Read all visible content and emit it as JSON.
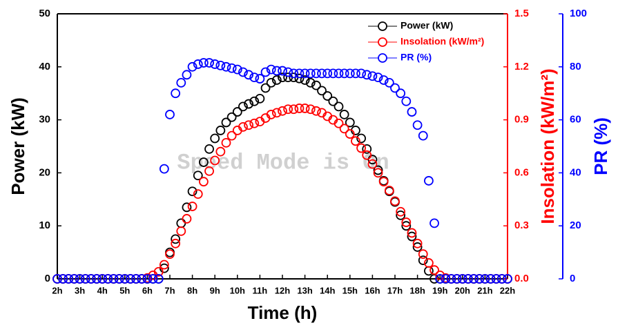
{
  "chart_data": {
    "type": "scatter",
    "xlabel": "Time (h)",
    "ylabel": "Power (kW)",
    "y2label": "Insolation (kW/m²)",
    "y3label": "PR (%)",
    "watermark": "Speed Mode is On",
    "xlim": [
      2,
      22
    ],
    "xticks": [
      {
        "value": 2,
        "label": "2h"
      },
      {
        "value": 3,
        "label": "3h"
      },
      {
        "value": 4,
        "label": "4h"
      },
      {
        "value": 5,
        "label": "5h"
      },
      {
        "value": 6,
        "label": "6h"
      },
      {
        "value": 7,
        "label": "7h"
      },
      {
        "value": 8,
        "label": "8h"
      },
      {
        "value": 9,
        "label": "9h"
      },
      {
        "value": 10,
        "label": "10h"
      },
      {
        "value": 11,
        "label": "11h"
      },
      {
        "value": 12,
        "label": "12h"
      },
      {
        "value": 13,
        "label": "13h"
      },
      {
        "value": 14,
        "label": "14h"
      },
      {
        "value": 15,
        "label": "15h"
      },
      {
        "value": 16,
        "label": "16h"
      },
      {
        "value": 17,
        "label": "17h"
      },
      {
        "value": 18,
        "label": "18h"
      },
      {
        "value": 19,
        "label": "19h"
      },
      {
        "value": 20,
        "label": "20h"
      },
      {
        "value": 21,
        "label": "21h"
      },
      {
        "value": 22,
        "label": "22h"
      }
    ],
    "ylim": [
      0,
      50
    ],
    "yticks": [
      0,
      10,
      20,
      30,
      40,
      50
    ],
    "y2lim": [
      0,
      1.5
    ],
    "y2ticks": [
      {
        "value": 0,
        "label": "0.0"
      },
      0.3,
      0.6,
      0.9,
      1.2,
      1.5
    ],
    "y3lim": [
      0,
      100
    ],
    "y3ticks": [
      0,
      20,
      40,
      60,
      80,
      100
    ],
    "x": [
      2,
      2.25,
      2.5,
      2.75,
      3,
      3.25,
      3.5,
      3.75,
      4,
      4.25,
      4.5,
      4.75,
      5,
      5.25,
      5.5,
      5.75,
      6,
      6.25,
      6.5,
      6.75,
      7,
      7.25,
      7.5,
      7.75,
      8,
      8.25,
      8.5,
      8.75,
      9,
      9.25,
      9.5,
      9.75,
      10,
      10.25,
      10.5,
      10.75,
      11,
      11.25,
      11.5,
      11.75,
      12,
      12.25,
      12.5,
      12.75,
      13,
      13.25,
      13.5,
      13.75,
      14,
      14.25,
      14.5,
      14.75,
      15,
      15.25,
      15.5,
      15.75,
      16,
      16.25,
      16.5,
      16.75,
      17,
      17.25,
      17.5,
      17.75,
      18,
      18.25,
      18.5,
      18.75,
      19,
      19.25,
      19.5,
      19.75,
      20,
      20.25,
      20.5,
      20.75,
      21,
      21.25,
      21.5,
      21.75,
      22
    ],
    "series": [
      {
        "name": "Power (kW)",
        "color": "#000000",
        "axis": "y",
        "values": [
          0,
          0,
          0,
          0,
          0,
          0,
          0,
          0,
          0,
          0,
          0,
          0,
          0,
          0,
          0,
          0,
          0,
          0,
          0,
          2,
          5,
          7.5,
          10.5,
          13.5,
          16.5,
          19.5,
          22,
          24.5,
          26.5,
          28,
          29.5,
          30.5,
          31.5,
          32.5,
          33,
          33.5,
          34,
          36,
          37,
          37.5,
          38,
          38,
          38,
          37.8,
          37.5,
          37,
          36.5,
          35.5,
          34.5,
          33.5,
          32.5,
          31,
          29.5,
          28,
          26.5,
          24.5,
          22.5,
          20.5,
          18.5,
          16.5,
          14.5,
          12,
          10,
          8,
          6,
          3.5,
          1.5,
          0,
          0,
          0,
          0,
          0,
          0,
          0,
          0,
          0,
          0,
          0,
          0,
          0,
          0
        ]
      },
      {
        "name": "Insolation (kW/m²)",
        "color": "#ff0000",
        "axis": "y2",
        "values": [
          0,
          0,
          0,
          0,
          0,
          0,
          0,
          0,
          0,
          0,
          0,
          0,
          0,
          0,
          0,
          0,
          0.005,
          0.02,
          0.04,
          0.08,
          0.14,
          0.2,
          0.27,
          0.34,
          0.41,
          0.48,
          0.55,
          0.61,
          0.67,
          0.72,
          0.77,
          0.81,
          0.84,
          0.86,
          0.87,
          0.88,
          0.89,
          0.91,
          0.93,
          0.94,
          0.95,
          0.96,
          0.96,
          0.965,
          0.965,
          0.96,
          0.95,
          0.94,
          0.92,
          0.9,
          0.88,
          0.85,
          0.82,
          0.78,
          0.74,
          0.7,
          0.65,
          0.6,
          0.55,
          0.5,
          0.44,
          0.38,
          0.32,
          0.26,
          0.2,
          0.14,
          0.09,
          0.05,
          0.02,
          0.005,
          0,
          0,
          0,
          0,
          0,
          0,
          0,
          0,
          0,
          0,
          0
        ]
      },
      {
        "name": "PR (%)",
        "color": "#0000ff",
        "axis": "y3",
        "values": [
          0,
          0,
          0,
          0,
          0,
          0,
          0,
          0,
          0,
          0,
          0,
          0,
          0,
          0,
          0,
          0,
          0,
          0,
          0,
          41.5,
          62,
          70,
          74,
          77,
          80,
          81,
          81.5,
          81.5,
          81,
          80.5,
          80,
          79.5,
          79,
          78,
          77,
          76,
          75.5,
          78,
          79,
          78.5,
          78.5,
          78,
          77.5,
          77.5,
          77.5,
          77.5,
          77.5,
          77.5,
          77.5,
          77.5,
          77.5,
          77.5,
          77.5,
          77.5,
          77.5,
          77,
          76.5,
          76,
          75,
          74,
          72,
          70,
          67,
          63,
          58,
          54,
          37,
          21,
          0,
          0,
          0,
          0,
          0,
          0,
          0,
          0,
          0,
          0,
          0,
          0,
          0
        ]
      }
    ]
  }
}
